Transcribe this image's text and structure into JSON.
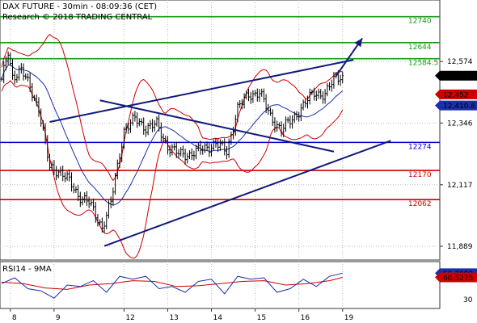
{
  "header": {
    "line1": "DAX FUTURE - 30min - 08:09:36 (CET)",
    "line2": "Research © 2018 TRADING CENTRAL"
  },
  "colors": {
    "price": "#000000",
    "bollinger": "#cc0000",
    "moving_average": "#1a2faa",
    "resistance": "#1a9a1a",
    "support": "#cc0000",
    "pivot": "#0000cc",
    "trendline": "#101a7a",
    "rsi": "#1a2faa",
    "rsi_ma": "#cc0000",
    "tag_last": "#000000",
    "tag_upper": "#cc0000",
    "tag_mid": "#1a2faa"
  },
  "chart_data": [
    {
      "type": "candlestick",
      "title": "DAX FUTURE - 30min - 08:09:36 (CET)",
      "ylim": [
        11850,
        12790
      ],
      "y_ticks": [
        12574,
        12346,
        12117,
        11889
      ],
      "y_tick_labels": [
        "12,574",
        "12,346",
        "12,117",
        "11,889"
      ],
      "x_tick_labels": [
        "8",
        "9",
        "12",
        "13",
        "14",
        "15",
        "16",
        "19"
      ],
      "bars": 200,
      "x_ticks": [
        4,
        24,
        56,
        76,
        96,
        116,
        136,
        156
      ],
      "levels": [
        {
          "label": "12740",
          "value": 12740,
          "role": "resistance"
        },
        {
          "label": "12644",
          "value": 12644,
          "role": "resistance"
        },
        {
          "label": "12584.5",
          "value": 12584.5,
          "role": "resistance"
        },
        {
          "label": "12274",
          "value": 12274,
          "role": "pivot"
        },
        {
          "label": "12170",
          "value": 12170,
          "role": "support"
        },
        {
          "label": "12062",
          "value": 12062,
          "role": "support"
        }
      ],
      "price_tags": [
        {
          "label": "12,521.5",
          "value": 12521.5,
          "role": "last"
        },
        {
          "label": "12,452",
          "value": 12452,
          "role": "bollinger-upper"
        },
        {
          "label": "12,410.8",
          "value": 12410.8,
          "role": "moving-average"
        }
      ],
      "anchors": [
        {
          "x": 0,
          "y": 12500
        },
        {
          "x": 3,
          "y": 12610
        },
        {
          "x": 5,
          "y": 12520
        },
        {
          "x": 9,
          "y": 12540
        },
        {
          "x": 13,
          "y": 12480
        },
        {
          "x": 17,
          "y": 12400
        },
        {
          "x": 22,
          "y": 12180
        },
        {
          "x": 26,
          "y": 12170
        },
        {
          "x": 30,
          "y": 12140
        },
        {
          "x": 35,
          "y": 12080
        },
        {
          "x": 40,
          "y": 12050
        },
        {
          "x": 46,
          "y": 11960
        },
        {
          "x": 50,
          "y": 12050
        },
        {
          "x": 56,
          "y": 12320
        },
        {
          "x": 61,
          "y": 12360
        },
        {
          "x": 66,
          "y": 12330
        },
        {
          "x": 71,
          "y": 12340
        },
        {
          "x": 76,
          "y": 12260
        },
        {
          "x": 81,
          "y": 12230
        },
        {
          "x": 86,
          "y": 12230
        },
        {
          "x": 92,
          "y": 12250
        },
        {
          "x": 98,
          "y": 12270
        },
        {
          "x": 103,
          "y": 12240
        },
        {
          "x": 108,
          "y": 12400
        },
        {
          "x": 113,
          "y": 12450
        },
        {
          "x": 118,
          "y": 12460
        },
        {
          "x": 123,
          "y": 12370
        },
        {
          "x": 128,
          "y": 12320
        },
        {
          "x": 133,
          "y": 12360
        },
        {
          "x": 138,
          "y": 12410
        },
        {
          "x": 143,
          "y": 12460
        },
        {
          "x": 148,
          "y": 12450
        },
        {
          "x": 153,
          "y": 12520
        },
        {
          "x": 156,
          "y": 12521.5
        }
      ],
      "trendlines": [
        {
          "name": "upper channel",
          "from": {
            "x": 22,
            "y": 12350
          },
          "to": {
            "x": 161,
            "y": 12580
          }
        },
        {
          "name": "lower channel",
          "from": {
            "x": 47,
            "y": 11890
          },
          "to": {
            "x": 178,
            "y": 12280
          }
        },
        {
          "name": "descending",
          "from": {
            "x": 45,
            "y": 12430
          },
          "to": {
            "x": 152,
            "y": 12240
          }
        },
        {
          "name": "projection",
          "from": {
            "x": 153,
            "y": 12520
          },
          "to": {
            "x": 165,
            "y": 12660
          }
        }
      ]
    },
    {
      "type": "line",
      "title": "RSI14 - 9MA",
      "ylim": [
        20,
        80
      ],
      "y_ticks": [
        30
      ],
      "y_tick_labels": [
        "30"
      ],
      "tags": [
        {
          "label": "66.3099",
          "value": 66.3099,
          "role": "rsi"
        },
        {
          "label": "60.5275",
          "value": 60.5275,
          "role": "ma"
        }
      ],
      "series": [
        {
          "role": "rsi",
          "points": [
            {
              "x": 0,
              "y": 52
            },
            {
              "x": 6,
              "y": 60
            },
            {
              "x": 12,
              "y": 45
            },
            {
              "x": 18,
              "y": 42
            },
            {
              "x": 24,
              "y": 32
            },
            {
              "x": 30,
              "y": 50
            },
            {
              "x": 36,
              "y": 48
            },
            {
              "x": 42,
              "y": 56
            },
            {
              "x": 48,
              "y": 40
            },
            {
              "x": 54,
              "y": 62
            },
            {
              "x": 60,
              "y": 58
            },
            {
              "x": 66,
              "y": 62
            },
            {
              "x": 72,
              "y": 45
            },
            {
              "x": 78,
              "y": 48
            },
            {
              "x": 84,
              "y": 40
            },
            {
              "x": 90,
              "y": 55
            },
            {
              "x": 96,
              "y": 58
            },
            {
              "x": 102,
              "y": 38
            },
            {
              "x": 108,
              "y": 62
            },
            {
              "x": 114,
              "y": 58
            },
            {
              "x": 120,
              "y": 60
            },
            {
              "x": 126,
              "y": 40
            },
            {
              "x": 132,
              "y": 45
            },
            {
              "x": 138,
              "y": 58
            },
            {
              "x": 144,
              "y": 48
            },
            {
              "x": 150,
              "y": 62
            },
            {
              "x": 156,
              "y": 66.31
            }
          ]
        },
        {
          "role": "ma",
          "points": [
            {
              "x": 0,
              "y": 54
            },
            {
              "x": 10,
              "y": 52
            },
            {
              "x": 20,
              "y": 46
            },
            {
              "x": 30,
              "y": 44
            },
            {
              "x": 40,
              "y": 50
            },
            {
              "x": 50,
              "y": 52
            },
            {
              "x": 60,
              "y": 56
            },
            {
              "x": 70,
              "y": 55
            },
            {
              "x": 80,
              "y": 48
            },
            {
              "x": 90,
              "y": 49
            },
            {
              "x": 100,
              "y": 52
            },
            {
              "x": 110,
              "y": 55
            },
            {
              "x": 120,
              "y": 56
            },
            {
              "x": 130,
              "y": 50
            },
            {
              "x": 140,
              "y": 52
            },
            {
              "x": 150,
              "y": 56
            },
            {
              "x": 156,
              "y": 60.53
            }
          ]
        }
      ]
    }
  ]
}
